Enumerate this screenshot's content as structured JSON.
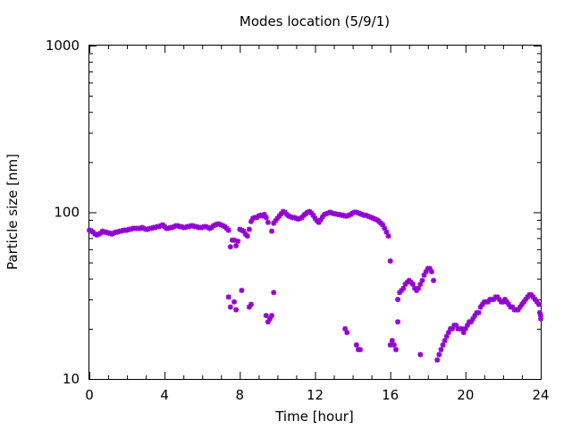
{
  "chart_data": {
    "type": "scatter",
    "title": "Modes location (5/9/1)",
    "xlabel": "Time [hour]",
    "ylabel": "Particle size [nm]",
    "xlim": [
      0,
      24
    ],
    "ylim": [
      10,
      1000
    ],
    "yscale": "log",
    "grid": false,
    "legend": "none",
    "colors": {
      "series": "#9400d3"
    },
    "x_ticks": [
      {
        "value": 0,
        "label": "0"
      },
      {
        "value": 4,
        "label": "4"
      },
      {
        "value": 8,
        "label": "8"
      },
      {
        "value": 12,
        "label": "12"
      },
      {
        "value": 16,
        "label": "16"
      },
      {
        "value": 20,
        "label": "20"
      },
      {
        "value": 24,
        "label": "24"
      }
    ],
    "y_ticks": [
      {
        "value": 10,
        "label": "10"
      },
      {
        "value": 100,
        "label": "100"
      },
      {
        "value": 1000,
        "label": "1000"
      }
    ],
    "series": [
      {
        "points": [
          [
            0.0,
            78
          ],
          [
            0.1,
            77
          ],
          [
            0.2,
            76
          ],
          [
            0.3,
            74
          ],
          [
            0.4,
            73
          ],
          [
            0.5,
            74
          ],
          [
            0.6,
            75
          ],
          [
            0.7,
            77
          ],
          [
            0.8,
            76
          ],
          [
            0.9,
            76
          ],
          [
            1.0,
            75
          ],
          [
            1.1,
            75
          ],
          [
            1.2,
            74
          ],
          [
            1.3,
            75
          ],
          [
            1.4,
            76
          ],
          [
            1.5,
            76
          ],
          [
            1.6,
            77
          ],
          [
            1.7,
            77
          ],
          [
            1.8,
            78
          ],
          [
            1.9,
            78
          ],
          [
            2.0,
            78
          ],
          [
            2.1,
            79
          ],
          [
            2.2,
            79
          ],
          [
            2.3,
            80
          ],
          [
            2.4,
            80
          ],
          [
            2.5,
            80
          ],
          [
            2.6,
            80
          ],
          [
            2.7,
            80
          ],
          [
            2.8,
            81
          ],
          [
            2.9,
            80
          ],
          [
            3.0,
            79
          ],
          [
            3.1,
            79
          ],
          [
            3.2,
            80
          ],
          [
            3.3,
            80
          ],
          [
            3.4,
            81
          ],
          [
            3.5,
            81
          ],
          [
            3.6,
            82
          ],
          [
            3.7,
            82
          ],
          [
            3.8,
            83
          ],
          [
            3.9,
            84
          ],
          [
            4.0,
            82
          ],
          [
            4.1,
            80
          ],
          [
            4.2,
            80
          ],
          [
            4.3,
            81
          ],
          [
            4.4,
            81
          ],
          [
            4.5,
            82
          ],
          [
            4.6,
            83
          ],
          [
            4.7,
            83
          ],
          [
            4.8,
            82
          ],
          [
            4.9,
            82
          ],
          [
            5.0,
            81
          ],
          [
            5.1,
            81
          ],
          [
            5.2,
            82
          ],
          [
            5.3,
            82
          ],
          [
            5.4,
            83
          ],
          [
            5.5,
            83
          ],
          [
            5.6,
            82
          ],
          [
            5.7,
            82
          ],
          [
            5.8,
            81
          ],
          [
            5.9,
            81
          ],
          [
            6.0,
            81
          ],
          [
            6.1,
            82
          ],
          [
            6.2,
            82
          ],
          [
            6.3,
            81
          ],
          [
            6.4,
            80
          ],
          [
            6.5,
            81
          ],
          [
            6.6,
            83
          ],
          [
            6.7,
            84
          ],
          [
            6.8,
            85
          ],
          [
            6.9,
            85
          ],
          [
            7.0,
            84
          ],
          [
            7.1,
            83
          ],
          [
            7.2,
            82
          ],
          [
            7.3,
            80
          ],
          [
            7.4,
            78
          ],
          [
            7.5,
            62
          ],
          [
            7.6,
            68
          ],
          [
            7.7,
            68
          ],
          [
            7.8,
            63
          ],
          [
            7.9,
            67
          ],
          [
            8.0,
            79
          ],
          [
            8.1,
            78
          ],
          [
            8.2,
            77
          ],
          [
            8.3,
            74
          ],
          [
            8.4,
            72
          ],
          [
            8.5,
            79
          ],
          [
            8.6,
            88
          ],
          [
            8.7,
            92
          ],
          [
            8.8,
            93
          ],
          [
            8.9,
            93
          ],
          [
            9.0,
            95
          ],
          [
            9.1,
            96
          ],
          [
            9.2,
            95
          ],
          [
            9.3,
            97
          ],
          [
            9.4,
            93
          ],
          [
            9.5,
            87
          ],
          [
            9.7,
            77
          ],
          [
            9.8,
            86
          ],
          [
            9.9,
            89
          ],
          [
            10.0,
            92
          ],
          [
            10.1,
            95
          ],
          [
            10.2,
            98
          ],
          [
            10.3,
            101
          ],
          [
            10.4,
            100
          ],
          [
            10.5,
            97
          ],
          [
            10.6,
            95
          ],
          [
            10.7,
            94
          ],
          [
            10.8,
            93
          ],
          [
            10.9,
            93
          ],
          [
            11.0,
            92
          ],
          [
            11.1,
            91
          ],
          [
            11.2,
            92
          ],
          [
            11.3,
            93
          ],
          [
            11.4,
            96
          ],
          [
            11.5,
            98
          ],
          [
            11.6,
            100
          ],
          [
            11.7,
            101
          ],
          [
            11.8,
            99
          ],
          [
            11.9,
            96
          ],
          [
            12.0,
            92
          ],
          [
            12.1,
            89
          ],
          [
            12.2,
            87
          ],
          [
            12.3,
            90
          ],
          [
            12.4,
            94
          ],
          [
            12.5,
            97
          ],
          [
            12.6,
            98
          ],
          [
            12.7,
            99
          ],
          [
            12.8,
            100
          ],
          [
            12.9,
            99
          ],
          [
            13.0,
            98
          ],
          [
            13.1,
            98
          ],
          [
            13.2,
            97
          ],
          [
            13.3,
            97
          ],
          [
            13.4,
            96
          ],
          [
            13.5,
            96
          ],
          [
            13.6,
            95
          ],
          [
            13.7,
            95
          ],
          [
            13.8,
            96
          ],
          [
            13.9,
            97
          ],
          [
            14.0,
            99
          ],
          [
            14.1,
            100
          ],
          [
            14.2,
            100
          ],
          [
            14.3,
            99
          ],
          [
            14.4,
            98
          ],
          [
            14.5,
            97
          ],
          [
            14.6,
            96
          ],
          [
            14.7,
            96
          ],
          [
            14.8,
            95
          ],
          [
            14.9,
            94
          ],
          [
            15.0,
            93
          ],
          [
            15.1,
            92
          ],
          [
            15.2,
            91
          ],
          [
            15.3,
            90
          ],
          [
            15.4,
            88
          ],
          [
            15.5,
            86
          ],
          [
            15.6,
            84
          ],
          [
            15.7,
            80
          ],
          [
            15.8,
            76
          ],
          [
            15.9,
            72
          ],
          [
            16.0,
            51
          ],
          [
            16.4,
            30
          ],
          [
            16.5,
            33
          ],
          [
            16.6,
            34
          ],
          [
            16.7,
            35
          ],
          [
            16.8,
            37
          ],
          [
            16.9,
            38
          ],
          [
            17.0,
            39
          ],
          [
            17.1,
            38
          ],
          [
            17.2,
            37
          ],
          [
            17.3,
            35
          ],
          [
            17.4,
            34
          ],
          [
            17.5,
            35
          ],
          [
            17.6,
            37
          ],
          [
            17.7,
            39
          ],
          [
            17.8,
            42
          ],
          [
            17.9,
            44
          ],
          [
            18.0,
            46
          ],
          [
            18.1,
            46
          ],
          [
            18.2,
            44
          ],
          [
            18.3,
            39
          ],
          [
            18.5,
            13
          ],
          [
            18.6,
            14
          ],
          [
            18.7,
            15
          ],
          [
            18.8,
            16
          ],
          [
            18.9,
            17
          ],
          [
            19.0,
            18
          ],
          [
            19.1,
            19
          ],
          [
            19.2,
            20
          ],
          [
            19.3,
            20
          ],
          [
            19.4,
            21
          ],
          [
            19.5,
            21
          ],
          [
            19.6,
            20
          ],
          [
            19.7,
            20
          ],
          [
            19.8,
            20
          ],
          [
            19.9,
            19
          ],
          [
            20.0,
            20
          ],
          [
            20.1,
            21
          ],
          [
            20.2,
            22
          ],
          [
            20.3,
            22
          ],
          [
            20.4,
            23
          ],
          [
            20.5,
            24
          ],
          [
            20.6,
            25
          ],
          [
            20.7,
            25
          ],
          [
            20.8,
            27
          ],
          [
            20.9,
            28
          ],
          [
            21.0,
            29
          ],
          [
            21.1,
            29
          ],
          [
            21.2,
            29
          ],
          [
            21.3,
            30
          ],
          [
            21.4,
            30
          ],
          [
            21.5,
            30
          ],
          [
            21.6,
            31
          ],
          [
            21.7,
            31
          ],
          [
            21.8,
            30
          ],
          [
            21.9,
            29
          ],
          [
            22.0,
            29
          ],
          [
            22.1,
            30
          ],
          [
            22.2,
            29
          ],
          [
            22.3,
            28
          ],
          [
            22.4,
            27
          ],
          [
            22.5,
            27
          ],
          [
            22.6,
            26
          ],
          [
            22.7,
            26
          ],
          [
            22.8,
            26
          ],
          [
            22.9,
            27
          ],
          [
            23.0,
            28
          ],
          [
            23.1,
            29
          ],
          [
            23.2,
            30
          ],
          [
            23.3,
            31
          ],
          [
            23.4,
            32
          ],
          [
            23.5,
            32
          ],
          [
            23.6,
            31
          ],
          [
            23.7,
            30
          ],
          [
            23.8,
            29
          ],
          [
            23.9,
            28
          ],
          [
            24.0,
            24
          ],
          [
            23.95,
            25
          ],
          [
            24.0,
            23
          ],
          [
            7.4,
            31
          ],
          [
            7.5,
            27
          ],
          [
            7.7,
            29
          ],
          [
            7.8,
            26
          ],
          [
            8.1,
            34
          ],
          [
            8.5,
            27
          ],
          [
            8.6,
            28
          ],
          [
            9.4,
            24
          ],
          [
            9.5,
            22
          ],
          [
            9.6,
            23
          ],
          [
            9.7,
            24
          ],
          [
            9.8,
            33
          ],
          [
            13.6,
            20
          ],
          [
            13.7,
            19
          ],
          [
            14.2,
            16
          ],
          [
            14.3,
            15
          ],
          [
            14.4,
            15
          ],
          [
            16.0,
            16
          ],
          [
            16.1,
            17
          ],
          [
            16.2,
            16
          ],
          [
            16.3,
            15
          ],
          [
            16.4,
            22
          ],
          [
            17.6,
            14
          ]
        ]
      }
    ]
  }
}
